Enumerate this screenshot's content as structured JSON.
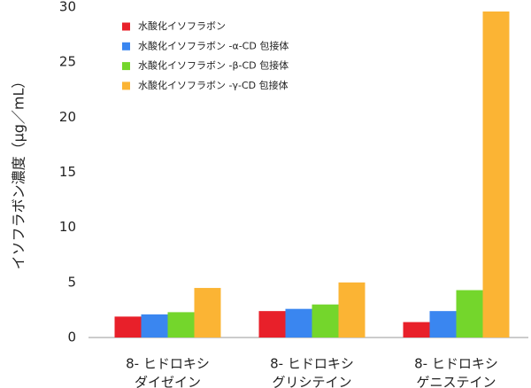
{
  "chart_data": {
    "type": "bar",
    "y_label": "イソフラボン濃度（μg／mL）",
    "categories": [
      [
        "8- ヒドロキシ",
        "ダイゼイン"
      ],
      [
        "8- ヒドロキシ",
        "グリシテイン"
      ],
      [
        "8- ヒドロキシ",
        "ゲニステイン"
      ]
    ],
    "series": [
      {
        "name": "水酸化イソフラボン",
        "color": "#e8202a",
        "values": [
          1.9,
          2.4,
          1.4
        ]
      },
      {
        "name": "水酸化イソフラボン -α-CD 包接体",
        "color": "#3a86f0",
        "values": [
          2.1,
          2.6,
          2.4
        ]
      },
      {
        "name": "水酸化イソフラボン -β-CD 包接体",
        "color": "#74d62c",
        "values": [
          2.3,
          3.0,
          4.3
        ]
      },
      {
        "name": "水酸化イソフラボン -γ-CD 包接体",
        "color": "#fbb434",
        "values": [
          4.5,
          5.0,
          29.6
        ]
      }
    ],
    "ylim": [
      0,
      30
    ],
    "yticks": [
      0,
      5,
      10,
      15,
      20,
      25,
      30
    ],
    "legend": "upper-left"
  }
}
